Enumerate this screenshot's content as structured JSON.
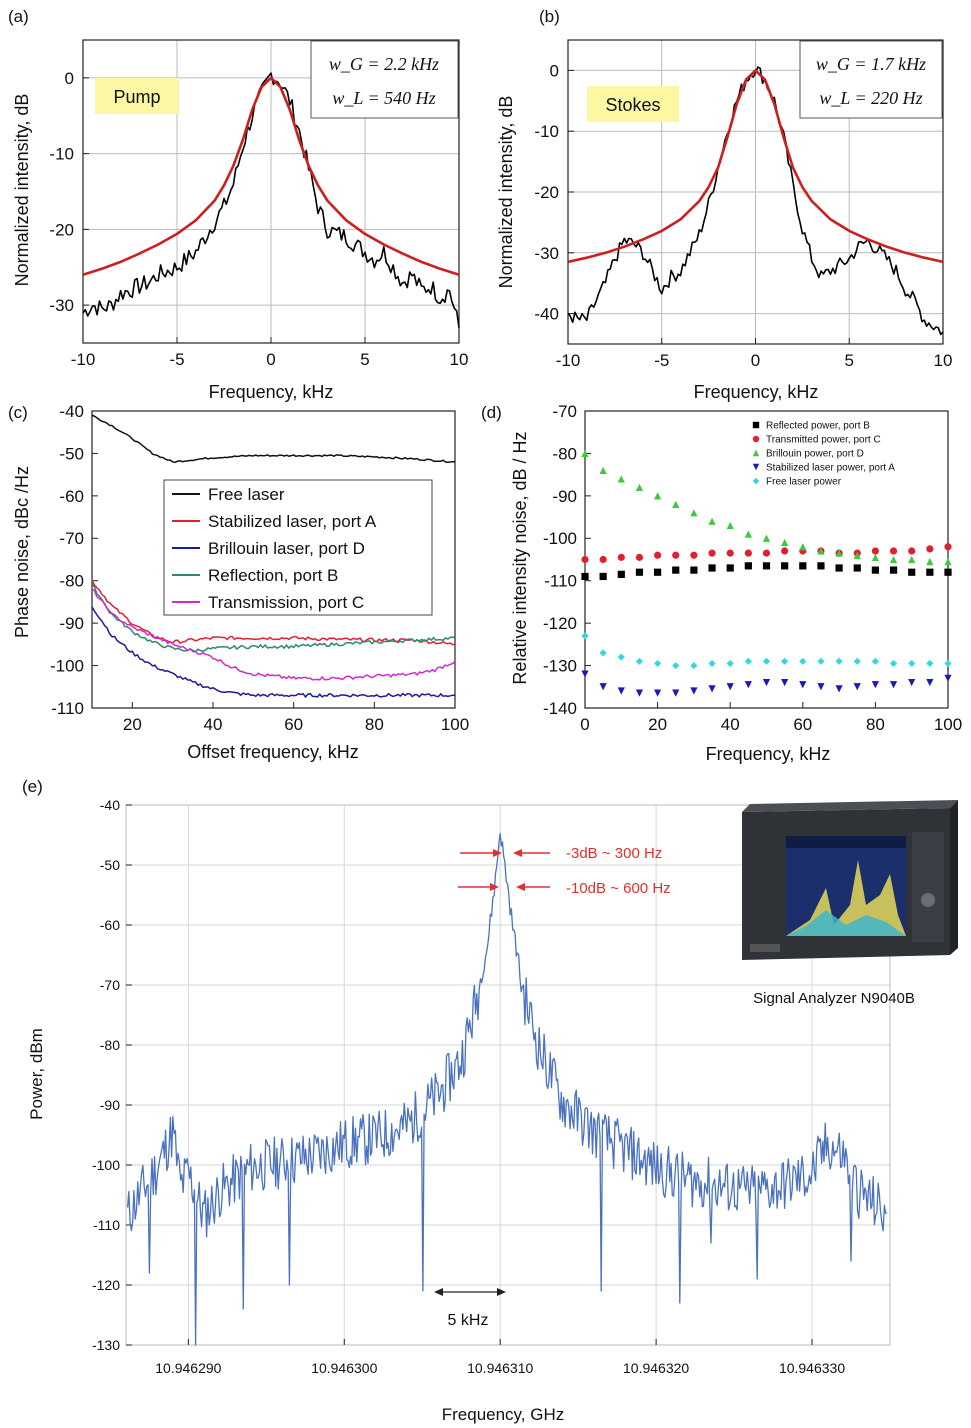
{
  "chart_data": [
    {
      "id": "a",
      "panel_label": "(a)",
      "type": "line",
      "xlabel": "Frequency, kHz",
      "ylabel": "Normalized intensity, dB",
      "xlim": [
        -10,
        10
      ],
      "ylim": [
        -35,
        5
      ],
      "xticks": [
        -10,
        -5,
        0,
        5,
        10
      ],
      "yticks": [
        -30,
        -20,
        -10,
        0
      ],
      "grid": true,
      "tag": "Pump",
      "fit_params": [
        "w_G = 2.2 kHz",
        "w_L = 540 Hz"
      ],
      "series": [
        {
          "role": "measured",
          "color": "#000000",
          "x": [
            -10,
            -9.5,
            -9,
            -8.5,
            -8,
            -7.5,
            -7,
            -6.5,
            -6,
            -5.5,
            -5,
            -4.5,
            -4,
            -3.5,
            -3,
            -2.5,
            -2,
            -1.5,
            -1,
            -0.5,
            0,
            0.5,
            1,
            1.5,
            2,
            2.5,
            3,
            3.5,
            4,
            4.5,
            5,
            5.5,
            6,
            6.5,
            7,
            7.5,
            8,
            8.5,
            9,
            9.5,
            10
          ],
          "y": [
            -31,
            -30,
            -30.5,
            -30,
            -28.5,
            -28,
            -27.5,
            -27,
            -26,
            -25.5,
            -25,
            -24,
            -23,
            -21,
            -19,
            -17,
            -14,
            -9,
            -5,
            -2,
            0.5,
            -0.5,
            -3,
            -7,
            -12,
            -17,
            -20,
            -20.5,
            -21,
            -22,
            -23,
            -24,
            -23,
            -25,
            -27,
            -26,
            -28,
            -27.5,
            -29,
            -28,
            -33
          ]
        },
        {
          "role": "fit",
          "color": "#cc1f1f",
          "x": [
            -10,
            -9,
            -8,
            -7,
            -6,
            -5,
            -4,
            -3,
            -2.5,
            -2,
            -1.5,
            -1,
            -0.5,
            0,
            0.5,
            1,
            1.5,
            2,
            2.5,
            3,
            4,
            5,
            6,
            7,
            8,
            9,
            10
          ],
          "y": [
            -26,
            -25.2,
            -24.3,
            -23.2,
            -22,
            -20.6,
            -18.8,
            -16.2,
            -14.2,
            -11.6,
            -8.2,
            -4.2,
            -1.2,
            0,
            -1.2,
            -4.2,
            -8.2,
            -11.6,
            -14.2,
            -16.2,
            -18.8,
            -20.6,
            -22,
            -23.2,
            -24.3,
            -25.2,
            -26
          ]
        }
      ]
    },
    {
      "id": "b",
      "panel_label": "(b)",
      "type": "line",
      "xlabel": "Frequency, kHz",
      "ylabel": "Normalized intensity, dB",
      "xlim": [
        -10,
        10
      ],
      "ylim": [
        -45,
        5
      ],
      "xticks": [
        -10,
        -5,
        0,
        5,
        10
      ],
      "yticks": [
        -40,
        -30,
        -20,
        -10,
        0
      ],
      "grid": true,
      "tag": "Stokes",
      "fit_params": [
        "w_G = 1.7 kHz",
        "w_L = 220 Hz"
      ],
      "series": [
        {
          "role": "measured",
          "color": "#000000",
          "x": [
            -10,
            -9.5,
            -9,
            -8.5,
            -8,
            -7.5,
            -7,
            -6.5,
            -6,
            -5.5,
            -5,
            -4.5,
            -4,
            -3.5,
            -3,
            -2.5,
            -2,
            -1.5,
            -1,
            -0.5,
            0,
            0.5,
            1,
            1.5,
            2,
            2.5,
            3,
            3.5,
            4,
            4.5,
            5,
            5.5,
            6,
            6.5,
            7,
            7.5,
            8,
            8.5,
            9,
            9.5,
            10
          ],
          "y": [
            -40,
            -41,
            -41,
            -38,
            -35,
            -31,
            -28,
            -28.5,
            -30,
            -33,
            -36,
            -34,
            -33,
            -30,
            -27,
            -22,
            -16,
            -10,
            -5,
            -1.5,
            0.5,
            -1.5,
            -5,
            -11,
            -19,
            -26,
            -31,
            -34,
            -33,
            -32,
            -31,
            -29,
            -28,
            -29.5,
            -31,
            -33,
            -36,
            -38,
            -41,
            -42,
            -43
          ]
        },
        {
          "role": "fit",
          "color": "#cc1f1f",
          "x": [
            -10,
            -9,
            -8,
            -7,
            -6,
            -5,
            -4,
            -3,
            -2.5,
            -2,
            -1.5,
            -1,
            -0.5,
            0,
            0.5,
            1,
            1.5,
            2,
            2.5,
            3,
            4,
            5,
            6,
            7,
            8,
            9,
            10
          ],
          "y": [
            -31.5,
            -30.8,
            -30,
            -29,
            -27.8,
            -26.4,
            -24.5,
            -21.5,
            -19.2,
            -16,
            -11,
            -5.5,
            -1.5,
            0,
            -1.5,
            -5.5,
            -11,
            -16,
            -19.2,
            -21.5,
            -24.5,
            -26.4,
            -27.8,
            -29,
            -30,
            -30.8,
            -31.5
          ]
        }
      ]
    },
    {
      "id": "c",
      "panel_label": "(c)",
      "type": "line",
      "xlabel": "Offset frequency, kHz",
      "ylabel": "Phase noise, dBc /Hz",
      "xlim": [
        10,
        100
      ],
      "ylim": [
        -110,
        -40
      ],
      "xticks": [
        20,
        40,
        60,
        80,
        100
      ],
      "yticks": [
        -110,
        -100,
        -90,
        -80,
        -70,
        -60,
        -50,
        -40
      ],
      "grid": false,
      "series": [
        {
          "name": "Free laser",
          "color": "#111111",
          "x": [
            10,
            15,
            20,
            25,
            30,
            35,
            40,
            50,
            60,
            70,
            80,
            90,
            100
          ],
          "y": [
            -41,
            -43.5,
            -46.5,
            -50,
            -52,
            -51.5,
            -51,
            -50.5,
            -50.5,
            -50.5,
            -50.8,
            -51.3,
            -52
          ]
        },
        {
          "name": "Stabilized laser, port A",
          "color": "#e0202e",
          "x": [
            10,
            15,
            20,
            25,
            30,
            35,
            40,
            50,
            60,
            70,
            80,
            90,
            100
          ],
          "y": [
            -80,
            -86,
            -90,
            -93,
            -94.5,
            -94,
            -93.5,
            -93.5,
            -93.5,
            -93.8,
            -94,
            -94,
            -95
          ]
        },
        {
          "name": "Brillouin laser, port D",
          "color": "#1c1c9e",
          "x": [
            10,
            15,
            20,
            25,
            30,
            35,
            40,
            45,
            50,
            60,
            70,
            80,
            90,
            100
          ],
          "y": [
            -86,
            -93,
            -97,
            -100,
            -102,
            -104,
            -105.5,
            -106.5,
            -107,
            -107,
            -107,
            -107,
            -107,
            -107
          ]
        },
        {
          "name": "Reflection, port B",
          "color": "#2a8a6a",
          "x": [
            10,
            15,
            20,
            25,
            30,
            35,
            40,
            50,
            60,
            70,
            80,
            90,
            100
          ],
          "y": [
            -81,
            -88,
            -92,
            -94.5,
            -96,
            -96.5,
            -96,
            -95.5,
            -95.5,
            -95,
            -94.5,
            -94,
            -93.5
          ]
        },
        {
          "name": "Transmission, port C",
          "color": "#d22ad2",
          "x": [
            10,
            15,
            20,
            25,
            30,
            35,
            40,
            45,
            50,
            60,
            70,
            80,
            90,
            95,
            100
          ],
          "y": [
            -82,
            -88,
            -91,
            -93,
            -95,
            -96.5,
            -98,
            -100.5,
            -102,
            -103,
            -103,
            -102.5,
            -102,
            -101,
            -99
          ]
        }
      ]
    },
    {
      "id": "d",
      "panel_label": "(d)",
      "type": "scatter",
      "xlabel": "Frequency, kHz",
      "ylabel": "Relative intensity noise, dB / Hz",
      "xlim": [
        0,
        100
      ],
      "ylim": [
        -140,
        -70
      ],
      "xticks": [
        0,
        20,
        40,
        60,
        80,
        100
      ],
      "yticks": [
        -140,
        -130,
        -120,
        -110,
        -100,
        -90,
        -80,
        -70
      ],
      "grid": false,
      "legend_position": "top-right",
      "series": [
        {
          "name": "Reflected power, port B",
          "color": "#000000",
          "marker": "square",
          "x": [
            0,
            5,
            10,
            15,
            20,
            25,
            30,
            35,
            40,
            45,
            50,
            55,
            60,
            65,
            70,
            75,
            80,
            85,
            90,
            95,
            100
          ],
          "y": [
            -109,
            -109,
            -108.5,
            -108,
            -108,
            -107.5,
            -107.5,
            -107,
            -107,
            -106.5,
            -106.5,
            -106.5,
            -106.5,
            -106.5,
            -107,
            -107,
            -107.5,
            -107.5,
            -108,
            -108,
            -108
          ]
        },
        {
          "name": "Transmitted power, port C",
          "color": "#e0202e",
          "marker": "circle",
          "x": [
            0,
            5,
            10,
            15,
            20,
            25,
            30,
            35,
            40,
            45,
            50,
            55,
            60,
            65,
            70,
            75,
            80,
            85,
            90,
            95,
            100
          ],
          "y": [
            -105,
            -105,
            -104.5,
            -104.5,
            -104,
            -104,
            -104,
            -103.5,
            -103.5,
            -103.5,
            -103.5,
            -103,
            -103,
            -103,
            -103.5,
            -103.5,
            -103,
            -103,
            -103,
            -102.5,
            -102
          ]
        },
        {
          "name": "Brillouin power, port D",
          "color": "#3ec83e",
          "marker": "triangle-up",
          "x": [
            0,
            5,
            10,
            15,
            20,
            25,
            30,
            35,
            40,
            45,
            50,
            55,
            60,
            65,
            70,
            75,
            80,
            85,
            90,
            95,
            100
          ],
          "y": [
            -80,
            -84,
            -86,
            -88,
            -90,
            -92,
            -94,
            -96,
            -97,
            -99,
            -100,
            -101,
            -102,
            -103,
            -103.5,
            -104,
            -104.5,
            -105,
            -105,
            -105.5,
            -105.5
          ]
        },
        {
          "name": "Stabilized laser power, port A",
          "color": "#1a1ab8",
          "marker": "triangle-down",
          "x": [
            0,
            5,
            10,
            15,
            20,
            25,
            30,
            35,
            40,
            45,
            50,
            55,
            60,
            65,
            70,
            75,
            80,
            85,
            90,
            95,
            100
          ],
          "y": [
            -132,
            -135,
            -136,
            -136.5,
            -136.5,
            -136.5,
            -136,
            -135.5,
            -135,
            -134.5,
            -134,
            -134,
            -134.5,
            -135,
            -135.5,
            -135,
            -134.5,
            -134.5,
            -134,
            -134,
            -133
          ]
        },
        {
          "name": "Free laser power",
          "color": "#35d6df",
          "marker": "diamond",
          "x": [
            0,
            5,
            10,
            15,
            20,
            25,
            30,
            35,
            40,
            45,
            50,
            55,
            60,
            65,
            70,
            75,
            80,
            85,
            90,
            95,
            100
          ],
          "y": [
            -123,
            -127,
            -128,
            -129,
            -129.5,
            -130,
            -130,
            -129.5,
            -129.5,
            -129,
            -129,
            -129,
            -129,
            -129,
            -129,
            -129,
            -129,
            -129.5,
            -129.5,
            -129.5,
            -129.5
          ]
        }
      ]
    },
    {
      "id": "e",
      "panel_label": "(e)",
      "type": "line",
      "xlabel": "Frequency, GHz",
      "ylabel": "Power, dBm",
      "xlim": [
        10.946286,
        10.946335
      ],
      "ylim": [
        -130,
        -40
      ],
      "xticks": [
        "10.946290",
        "10.946300",
        "10.946310",
        "10.946320",
        "10.946330"
      ],
      "xtick_values": [
        10.94629,
        10.9463,
        10.94631,
        10.94632,
        10.94633
      ],
      "yticks": [
        -130,
        -120,
        -110,
        -100,
        -90,
        -80,
        -70,
        -60,
        -50,
        -40
      ],
      "grid": true,
      "series": [
        {
          "name": "",
          "color": "#4a72c0",
          "x": [
            10.9462861,
            10.946287,
            10.946288,
            10.946289,
            10.9462895,
            10.94629,
            10.946291,
            10.946292,
            10.946294,
            10.946296,
            10.946298,
            10.9463,
            10.946302,
            10.946304,
            10.946306,
            10.9463075,
            10.9463085,
            10.9463092,
            10.9463097,
            10.94631,
            10.9463103,
            10.9463108,
            10.9463115,
            10.9463125,
            10.946314,
            10.946316,
            10.946318,
            10.94632,
            10.946322,
            10.946324,
            10.946326,
            10.946328,
            10.94633,
            10.946331,
            10.946332,
            10.946333,
            10.946334,
            10.9463348
          ],
          "y": [
            -108,
            -104,
            -100,
            -94,
            -103,
            -101,
            -108,
            -104,
            -100,
            -99,
            -98,
            -96,
            -95,
            -93,
            -88,
            -82,
            -72,
            -63,
            -52,
            -44,
            -50,
            -60,
            -71,
            -80,
            -89,
            -94,
            -97,
            -100,
            -102,
            -103,
            -104,
            -103,
            -101,
            -96,
            -98,
            -104,
            -106,
            -108
          ]
        },
        {
          "name": "",
          "color": "#4a72c0",
          "style": "dips",
          "x": [
            10.9462875,
            10.9462905,
            10.9462935,
            10.9462965,
            10.946305,
            10.9463165,
            10.9463215,
            10.9463235,
            10.9463265,
            10.9463325
          ],
          "y": [
            -118,
            -130,
            -124,
            -120,
            -121,
            -121,
            -123,
            -113,
            -119,
            -116
          ]
        }
      ],
      "annotations": [
        "-3dB ~ 300 Hz",
        "-10dB ~ 600 Hz",
        "5 kHz"
      ],
      "inset_caption": "Signal Analyzer N9040B"
    }
  ]
}
